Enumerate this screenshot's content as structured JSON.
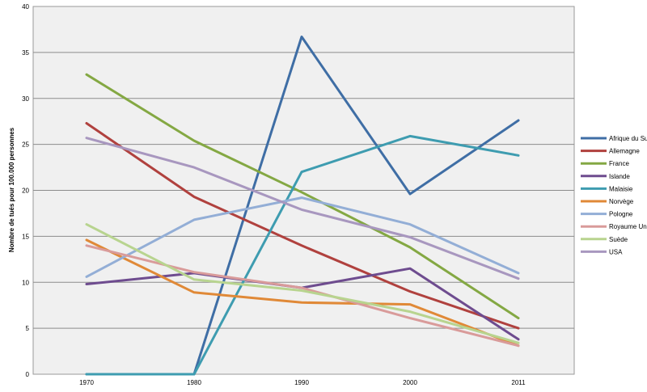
{
  "chart_data": {
    "type": "line",
    "title": "",
    "xlabel": "",
    "ylabel": "Nombre de tués pour 100.000 personnes",
    "categories": [
      "1970",
      "1980",
      "1990",
      "2000",
      "2011"
    ],
    "ylim": [
      0,
      40
    ],
    "yticks": [
      0,
      5,
      10,
      15,
      20,
      25,
      30,
      35,
      40
    ],
    "grid": true,
    "legend_position": "right",
    "series": [
      {
        "name": "Afrique du Sud",
        "color": "#3f6ea5",
        "values": [
          0,
          0,
          36.7,
          19.6,
          27.6
        ]
      },
      {
        "name": "Allemagne",
        "color": "#b0413e",
        "values": [
          27.3,
          19.3,
          14.0,
          9.0,
          5.0
        ]
      },
      {
        "name": "France",
        "color": "#84a843",
        "values": [
          32.6,
          25.4,
          19.8,
          13.8,
          6.1
        ]
      },
      {
        "name": "Islande",
        "color": "#6e4c8f",
        "values": [
          9.8,
          11.0,
          9.4,
          11.5,
          3.8
        ]
      },
      {
        "name": "Malaisie",
        "color": "#3e9cb0",
        "values": [
          0,
          0,
          22.0,
          25.9,
          23.8
        ]
      },
      {
        "name": "Norvège",
        "color": "#e08937",
        "values": [
          14.6,
          8.9,
          7.8,
          7.6,
          3.1
        ]
      },
      {
        "name": "Pologne",
        "color": "#93aed6",
        "values": [
          10.6,
          16.8,
          19.2,
          16.3,
          11.0
        ]
      },
      {
        "name": "Royaume Uni",
        "color": "#d99b9a",
        "values": [
          14.0,
          11.1,
          9.4,
          6.1,
          3.1
        ]
      },
      {
        "name": "Suède",
        "color": "#b8d48f",
        "values": [
          16.3,
          10.3,
          9.1,
          6.8,
          3.4
        ]
      },
      {
        "name": "USA",
        "color": "#a897bf",
        "values": [
          25.7,
          22.5,
          17.9,
          14.9,
          10.4
        ]
      }
    ]
  }
}
